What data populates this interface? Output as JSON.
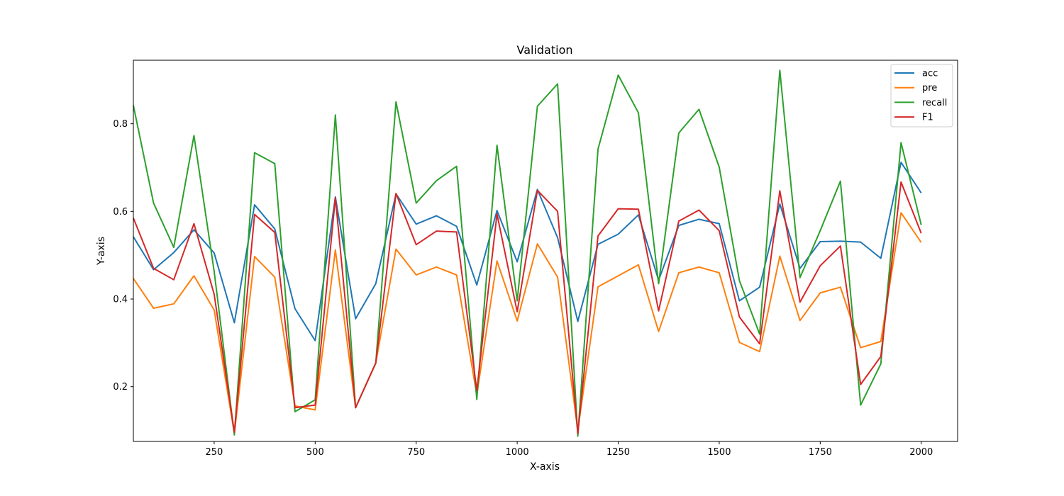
{
  "chart_data": {
    "type": "line",
    "title": "Validation",
    "xlabel": "X-axis",
    "ylabel": "Y-axis",
    "xlim": [
      50,
      2090
    ],
    "ylim": [
      0.075,
      0.945
    ],
    "xticks": [
      250,
      500,
      750,
      1000,
      1250,
      1500,
      1750,
      2000
    ],
    "yticks": [
      0.2,
      0.4,
      0.6,
      0.8
    ],
    "grid": false,
    "legend_position": "top-right",
    "x": [
      50,
      100,
      150,
      200,
      250,
      300,
      350,
      400,
      450,
      500,
      550,
      600,
      650,
      700,
      750,
      800,
      850,
      900,
      950,
      1000,
      1050,
      1100,
      1150,
      1200,
      1250,
      1300,
      1350,
      1400,
      1450,
      1500,
      1550,
      1600,
      1650,
      1700,
      1750,
      1800,
      1850,
      1900,
      1950,
      2000
    ],
    "series": [
      {
        "name": "acc",
        "color": "#1f77b4",
        "values": [
          0.542,
          0.467,
          0.506,
          0.558,
          0.505,
          0.346,
          0.615,
          0.56,
          0.378,
          0.305,
          0.633,
          0.355,
          0.435,
          0.64,
          0.571,
          0.59,
          0.566,
          0.432,
          0.602,
          0.485,
          0.65,
          0.54,
          0.349,
          0.525,
          0.548,
          0.592,
          0.443,
          0.568,
          0.582,
          0.572,
          0.396,
          0.427,
          0.617,
          0.47,
          0.531,
          0.532,
          0.53,
          0.493,
          0.712,
          0.642
        ]
      },
      {
        "name": "pre",
        "color": "#ff7f0e",
        "values": [
          0.447,
          0.379,
          0.389,
          0.453,
          0.375,
          0.093,
          0.497,
          0.45,
          0.156,
          0.147,
          0.512,
          0.152,
          0.254,
          0.514,
          0.455,
          0.473,
          0.455,
          0.181,
          0.487,
          0.35,
          0.526,
          0.45,
          0.1,
          0.428,
          0.453,
          0.478,
          0.326,
          0.46,
          0.473,
          0.46,
          0.301,
          0.28,
          0.498,
          0.351,
          0.414,
          0.427,
          0.289,
          0.303,
          0.597,
          0.529
        ]
      },
      {
        "name": "recall",
        "color": "#2ca02c",
        "values": [
          0.842,
          0.619,
          0.518,
          0.773,
          0.463,
          0.09,
          0.734,
          0.709,
          0.143,
          0.17,
          0.82,
          0.152,
          0.254,
          0.85,
          0.619,
          0.67,
          0.703,
          0.171,
          0.751,
          0.396,
          0.84,
          0.891,
          0.087,
          0.742,
          0.911,
          0.825,
          0.435,
          0.779,
          0.833,
          0.701,
          0.442,
          0.32,
          0.922,
          0.449,
          0.556,
          0.669,
          0.158,
          0.252,
          0.757,
          0.569
        ]
      },
      {
        "name": "F1",
        "color": "#d62728",
        "values": [
          0.585,
          0.47,
          0.444,
          0.572,
          0.411,
          0.096,
          0.593,
          0.552,
          0.152,
          0.158,
          0.631,
          0.152,
          0.254,
          0.641,
          0.524,
          0.555,
          0.553,
          0.191,
          0.594,
          0.371,
          0.648,
          0.6,
          0.093,
          0.544,
          0.606,
          0.605,
          0.373,
          0.578,
          0.603,
          0.556,
          0.359,
          0.298,
          0.647,
          0.393,
          0.476,
          0.521,
          0.205,
          0.269,
          0.667,
          0.55
        ]
      }
    ]
  }
}
